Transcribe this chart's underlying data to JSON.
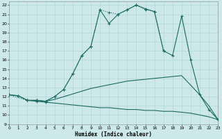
{
  "xlabel": "Humidex (Indice chaleur)",
  "background_color": "#cce8e8",
  "grid_color": "#aad4d4",
  "line_color": "#1a6b60",
  "xlim": [
    0,
    23
  ],
  "ylim": [
    9,
    22.4
  ],
  "xticks": [
    0,
    1,
    2,
    3,
    4,
    5,
    6,
    7,
    8,
    9,
    10,
    11,
    12,
    13,
    14,
    15,
    16,
    17,
    18,
    19,
    20,
    21,
    22,
    23
  ],
  "yticks": [
    9,
    10,
    11,
    12,
    13,
    14,
    15,
    16,
    17,
    18,
    19,
    20,
    21,
    22
  ],
  "line_dotted": {
    "x": [
      0,
      2,
      3,
      4,
      5,
      6,
      7,
      8,
      9,
      10,
      11,
      12,
      13,
      14,
      15,
      16,
      17
    ],
    "y": [
      12.2,
      11.6,
      11.6,
      11.5,
      12.0,
      12.8,
      14.5,
      16.5,
      17.5,
      21.5,
      21.2,
      21.0,
      21.5,
      22.0,
      21.5,
      21.3,
      17.0
    ],
    "marker_indices": [
      0,
      1,
      2,
      3,
      4,
      5,
      6,
      7,
      8,
      9,
      10,
      11,
      12,
      13,
      14,
      15,
      16
    ]
  },
  "line_solid_peak": {
    "x": [
      2,
      3,
      4,
      5,
      6,
      7,
      8,
      9,
      10,
      11,
      12,
      13,
      14,
      15,
      16,
      17,
      18,
      19,
      20,
      21,
      22,
      23
    ],
    "y": [
      11.6,
      11.6,
      11.5,
      12.0,
      12.8,
      14.5,
      16.5,
      17.5,
      21.5,
      20.0,
      21.0,
      21.5,
      22.0,
      21.6,
      21.3,
      17.0,
      16.5,
      20.8,
      16.0,
      12.2,
      10.6,
      9.5
    ],
    "marker_indices": [
      0,
      1,
      2,
      3,
      4,
      5,
      6,
      7,
      8,
      9,
      10,
      11,
      12,
      13,
      14,
      15,
      16,
      17,
      18,
      19,
      20,
      21
    ]
  },
  "line_mid": {
    "x": [
      0,
      1,
      2,
      3,
      4,
      5,
      6,
      7,
      8,
      9,
      10,
      11,
      12,
      13,
      14,
      15,
      16,
      17,
      18,
      19,
      21,
      22,
      23
    ],
    "y": [
      12.2,
      12.1,
      11.6,
      11.6,
      11.5,
      11.7,
      12.0,
      12.3,
      12.6,
      12.9,
      13.1,
      13.3,
      13.5,
      13.7,
      13.8,
      13.9,
      14.0,
      14.1,
      14.2,
      14.3,
      12.2,
      11.0,
      9.5
    ],
    "marker_indices": [
      0,
      1,
      2,
      3,
      4
    ]
  },
  "line_flat_down": {
    "x": [
      0,
      1,
      2,
      3,
      4,
      5,
      6,
      7,
      8,
      9,
      10,
      11,
      12,
      13,
      14,
      15,
      16,
      17,
      18,
      19,
      20,
      21,
      22,
      23
    ],
    "y": [
      12.2,
      12.1,
      11.6,
      11.5,
      11.4,
      11.3,
      11.2,
      11.1,
      11.0,
      10.9,
      10.8,
      10.8,
      10.7,
      10.6,
      10.6,
      10.5,
      10.5,
      10.4,
      10.4,
      10.3,
      10.2,
      10.0,
      9.8,
      9.5
    ],
    "marker_indices": [
      0,
      1,
      2,
      3,
      4
    ]
  }
}
